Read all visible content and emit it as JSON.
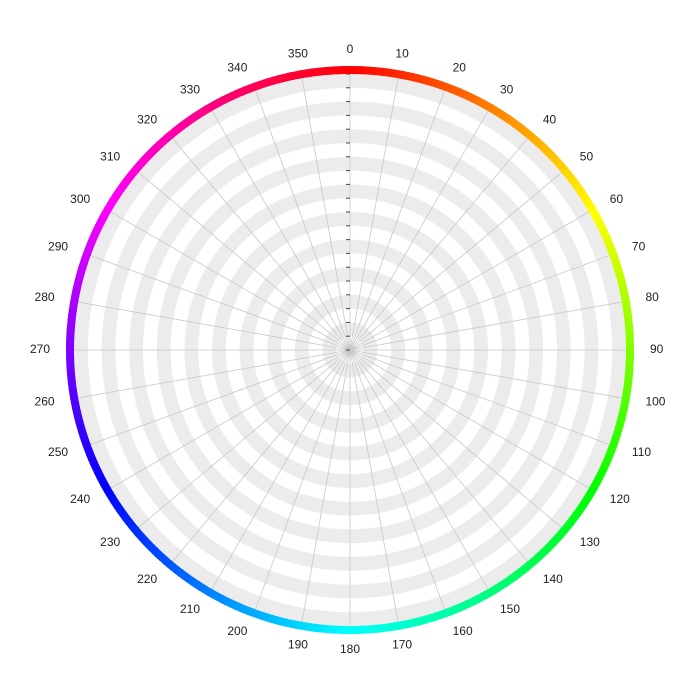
{
  "chart_data": {
    "type": "polar",
    "angular_axis": {
      "range": [
        0,
        360
      ],
      "tick_step": 10,
      "direction": "clockwise",
      "zero_location": "top",
      "tick_labels": [
        "0",
        "10",
        "20",
        "30",
        "40",
        "50",
        "60",
        "70",
        "80",
        "90",
        "100",
        "110",
        "120",
        "130",
        "140",
        "150",
        "160",
        "170",
        "180",
        "190",
        "200",
        "210",
        "220",
        "230",
        "240",
        "250",
        "260",
        "270",
        "280",
        "290",
        "300",
        "310",
        "320",
        "330",
        "340",
        "350"
      ]
    },
    "radial_axis": {
      "tick_count": 20,
      "bands": "alternating",
      "tick_labels_shown": false
    },
    "rim": "hue color wheel",
    "series": [],
    "grid": true,
    "legend": "none"
  },
  "colors": {
    "band_light": "#ffffff",
    "band_shade": "#ececec",
    "spoke": "#c8c8c8",
    "tick_mark": "#444444",
    "label_text": "#222222"
  }
}
